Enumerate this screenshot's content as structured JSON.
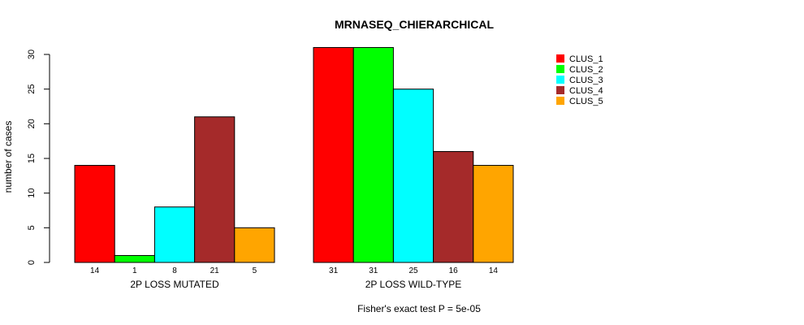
{
  "chart_data": {
    "type": "bar",
    "title": "MRNASEQ_CHIERARCHICAL",
    "ylabel": "number of cases",
    "ylim": [
      0,
      30
    ],
    "yticks": [
      0,
      5,
      10,
      15,
      20,
      25,
      30
    ],
    "footnote": "Fisher's exact test P = 5e-05",
    "groups": [
      {
        "label": "2P LOSS MUTATED",
        "values": [
          14,
          1,
          8,
          21,
          5
        ],
        "value_labels": [
          "14",
          "1",
          "8",
          "21",
          "5"
        ]
      },
      {
        "label": "2P LOSS WILD-TYPE",
        "values": [
          31,
          31,
          25,
          16,
          14
        ],
        "value_labels": [
          "31",
          "31",
          "25",
          "16",
          "14"
        ]
      }
    ],
    "series": [
      {
        "name": "CLUS_1",
        "color": "#ff0000"
      },
      {
        "name": "CLUS_2",
        "color": "#00ff00"
      },
      {
        "name": "CLUS_3",
        "color": "#00ffff"
      },
      {
        "name": "CLUS_4",
        "color": "#a52a2a"
      },
      {
        "name": "CLUS_5",
        "color": "#ffa500"
      }
    ]
  }
}
